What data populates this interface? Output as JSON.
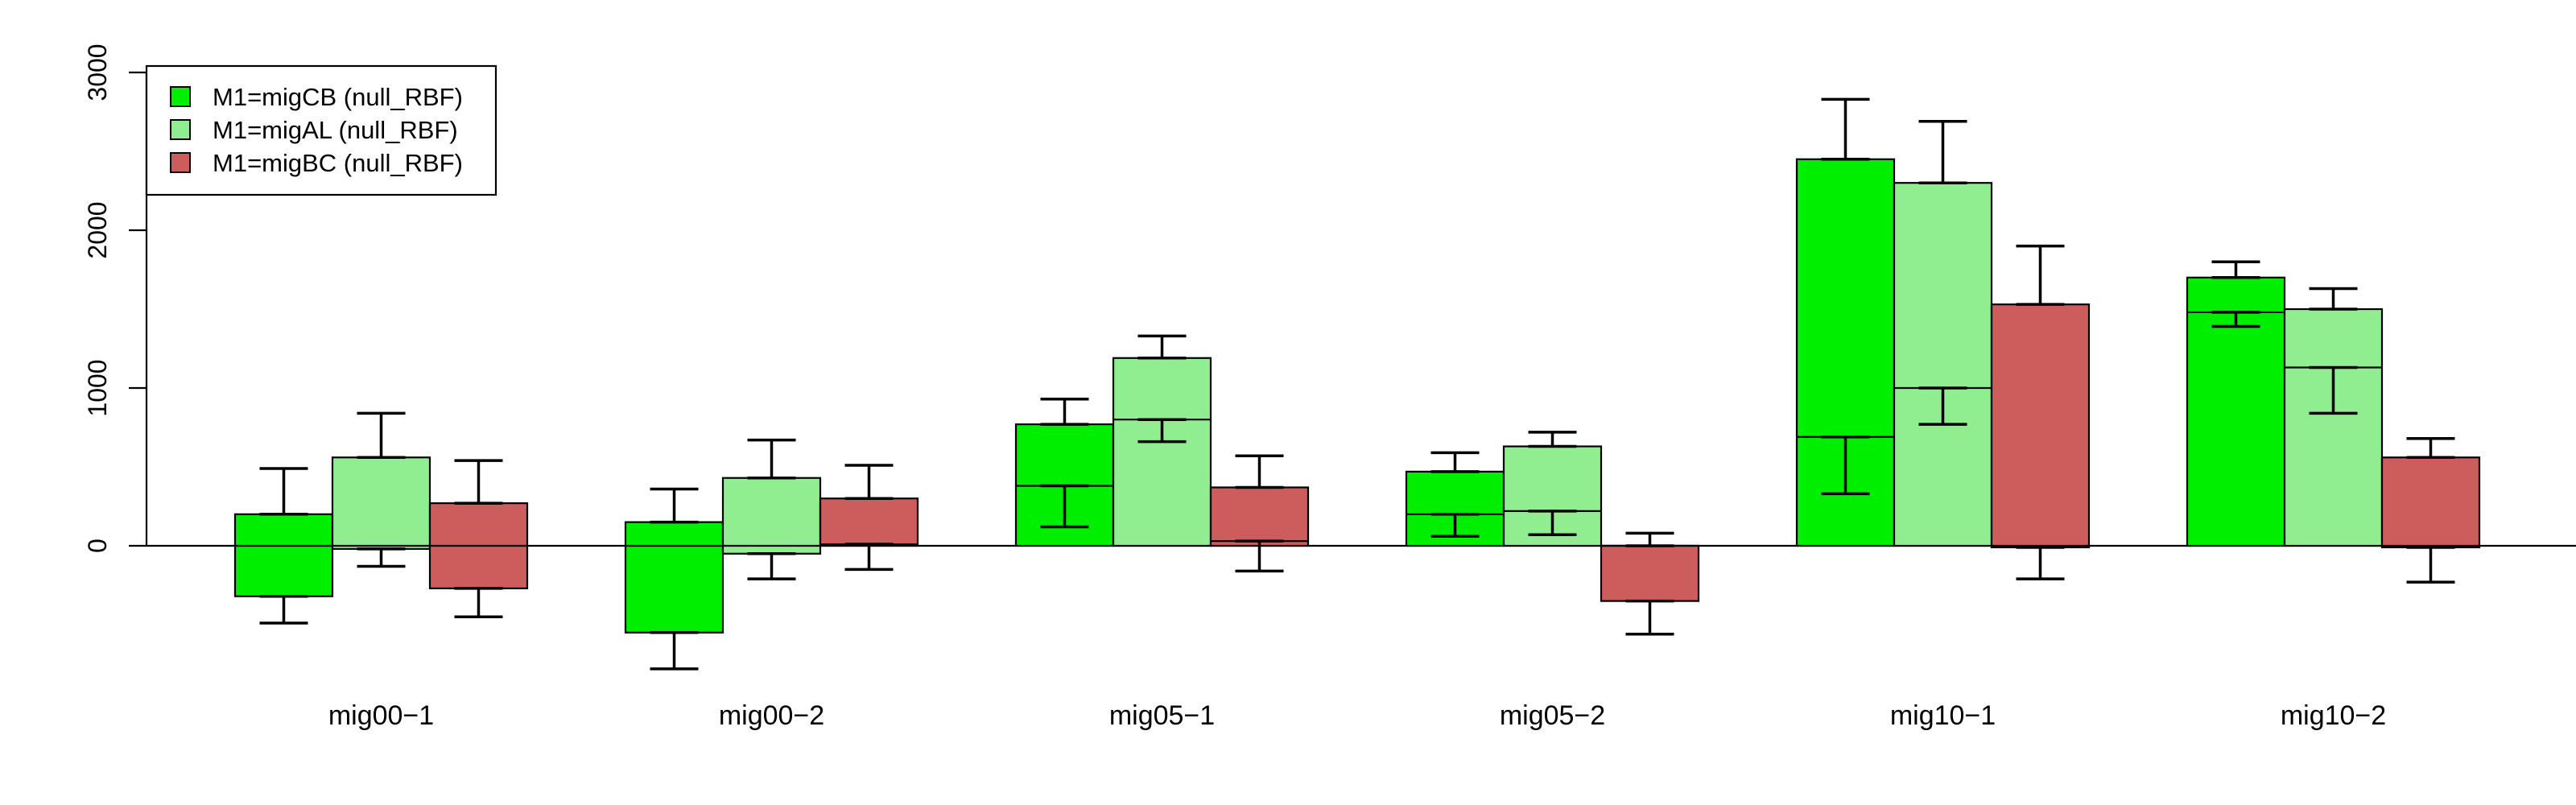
{
  "chart_data": {
    "type": "bar",
    "categories": [
      "mig00−1",
      "mig00−2",
      "mig05−1",
      "mig05−2",
      "mig10−1",
      "mig10−2"
    ],
    "series": [
      {
        "name": "M1=migCB (null_RBF)",
        "color": "#00ee00",
        "values": [
          200,
          150,
          770,
          470,
          2450,
          1700
        ],
        "lower": [
          -320,
          -550,
          380,
          200,
          690,
          1480
        ],
        "err_low": [
          -490,
          -780,
          120,
          60,
          330,
          1390
        ],
        "err_high": [
          490,
          360,
          930,
          590,
          2830,
          1800
        ]
      },
      {
        "name": "M1=migAL (null_RBF)",
        "color": "#90ee90",
        "values": [
          560,
          430,
          1190,
          630,
          2300,
          1500
        ],
        "lower": [
          -20,
          -50,
          800,
          220,
          1000,
          1130
        ],
        "err_low": [
          -130,
          -210,
          660,
          70,
          770,
          840
        ],
        "err_high": [
          840,
          670,
          1330,
          720,
          2690,
          1630
        ]
      },
      {
        "name": "M1=migBC (null_RBF)",
        "color": "#cd5c5c",
        "values": [
          270,
          300,
          370,
          0,
          1530,
          560
        ],
        "lower": [
          -270,
          10,
          30,
          -350,
          -10,
          -10
        ],
        "err_low": [
          -450,
          -150,
          -160,
          -560,
          -210,
          -230
        ],
        "err_high": [
          540,
          510,
          570,
          80,
          1900,
          680
        ]
      }
    ],
    "ylim": [
      -1000,
      3000
    ],
    "yticks": [
      0,
      1000,
      2000,
      3000
    ],
    "ytick_labels": [
      "0",
      "1000",
      "2000",
      "3000"
    ],
    "legend": {
      "position": "top-left"
    },
    "grid": false
  }
}
